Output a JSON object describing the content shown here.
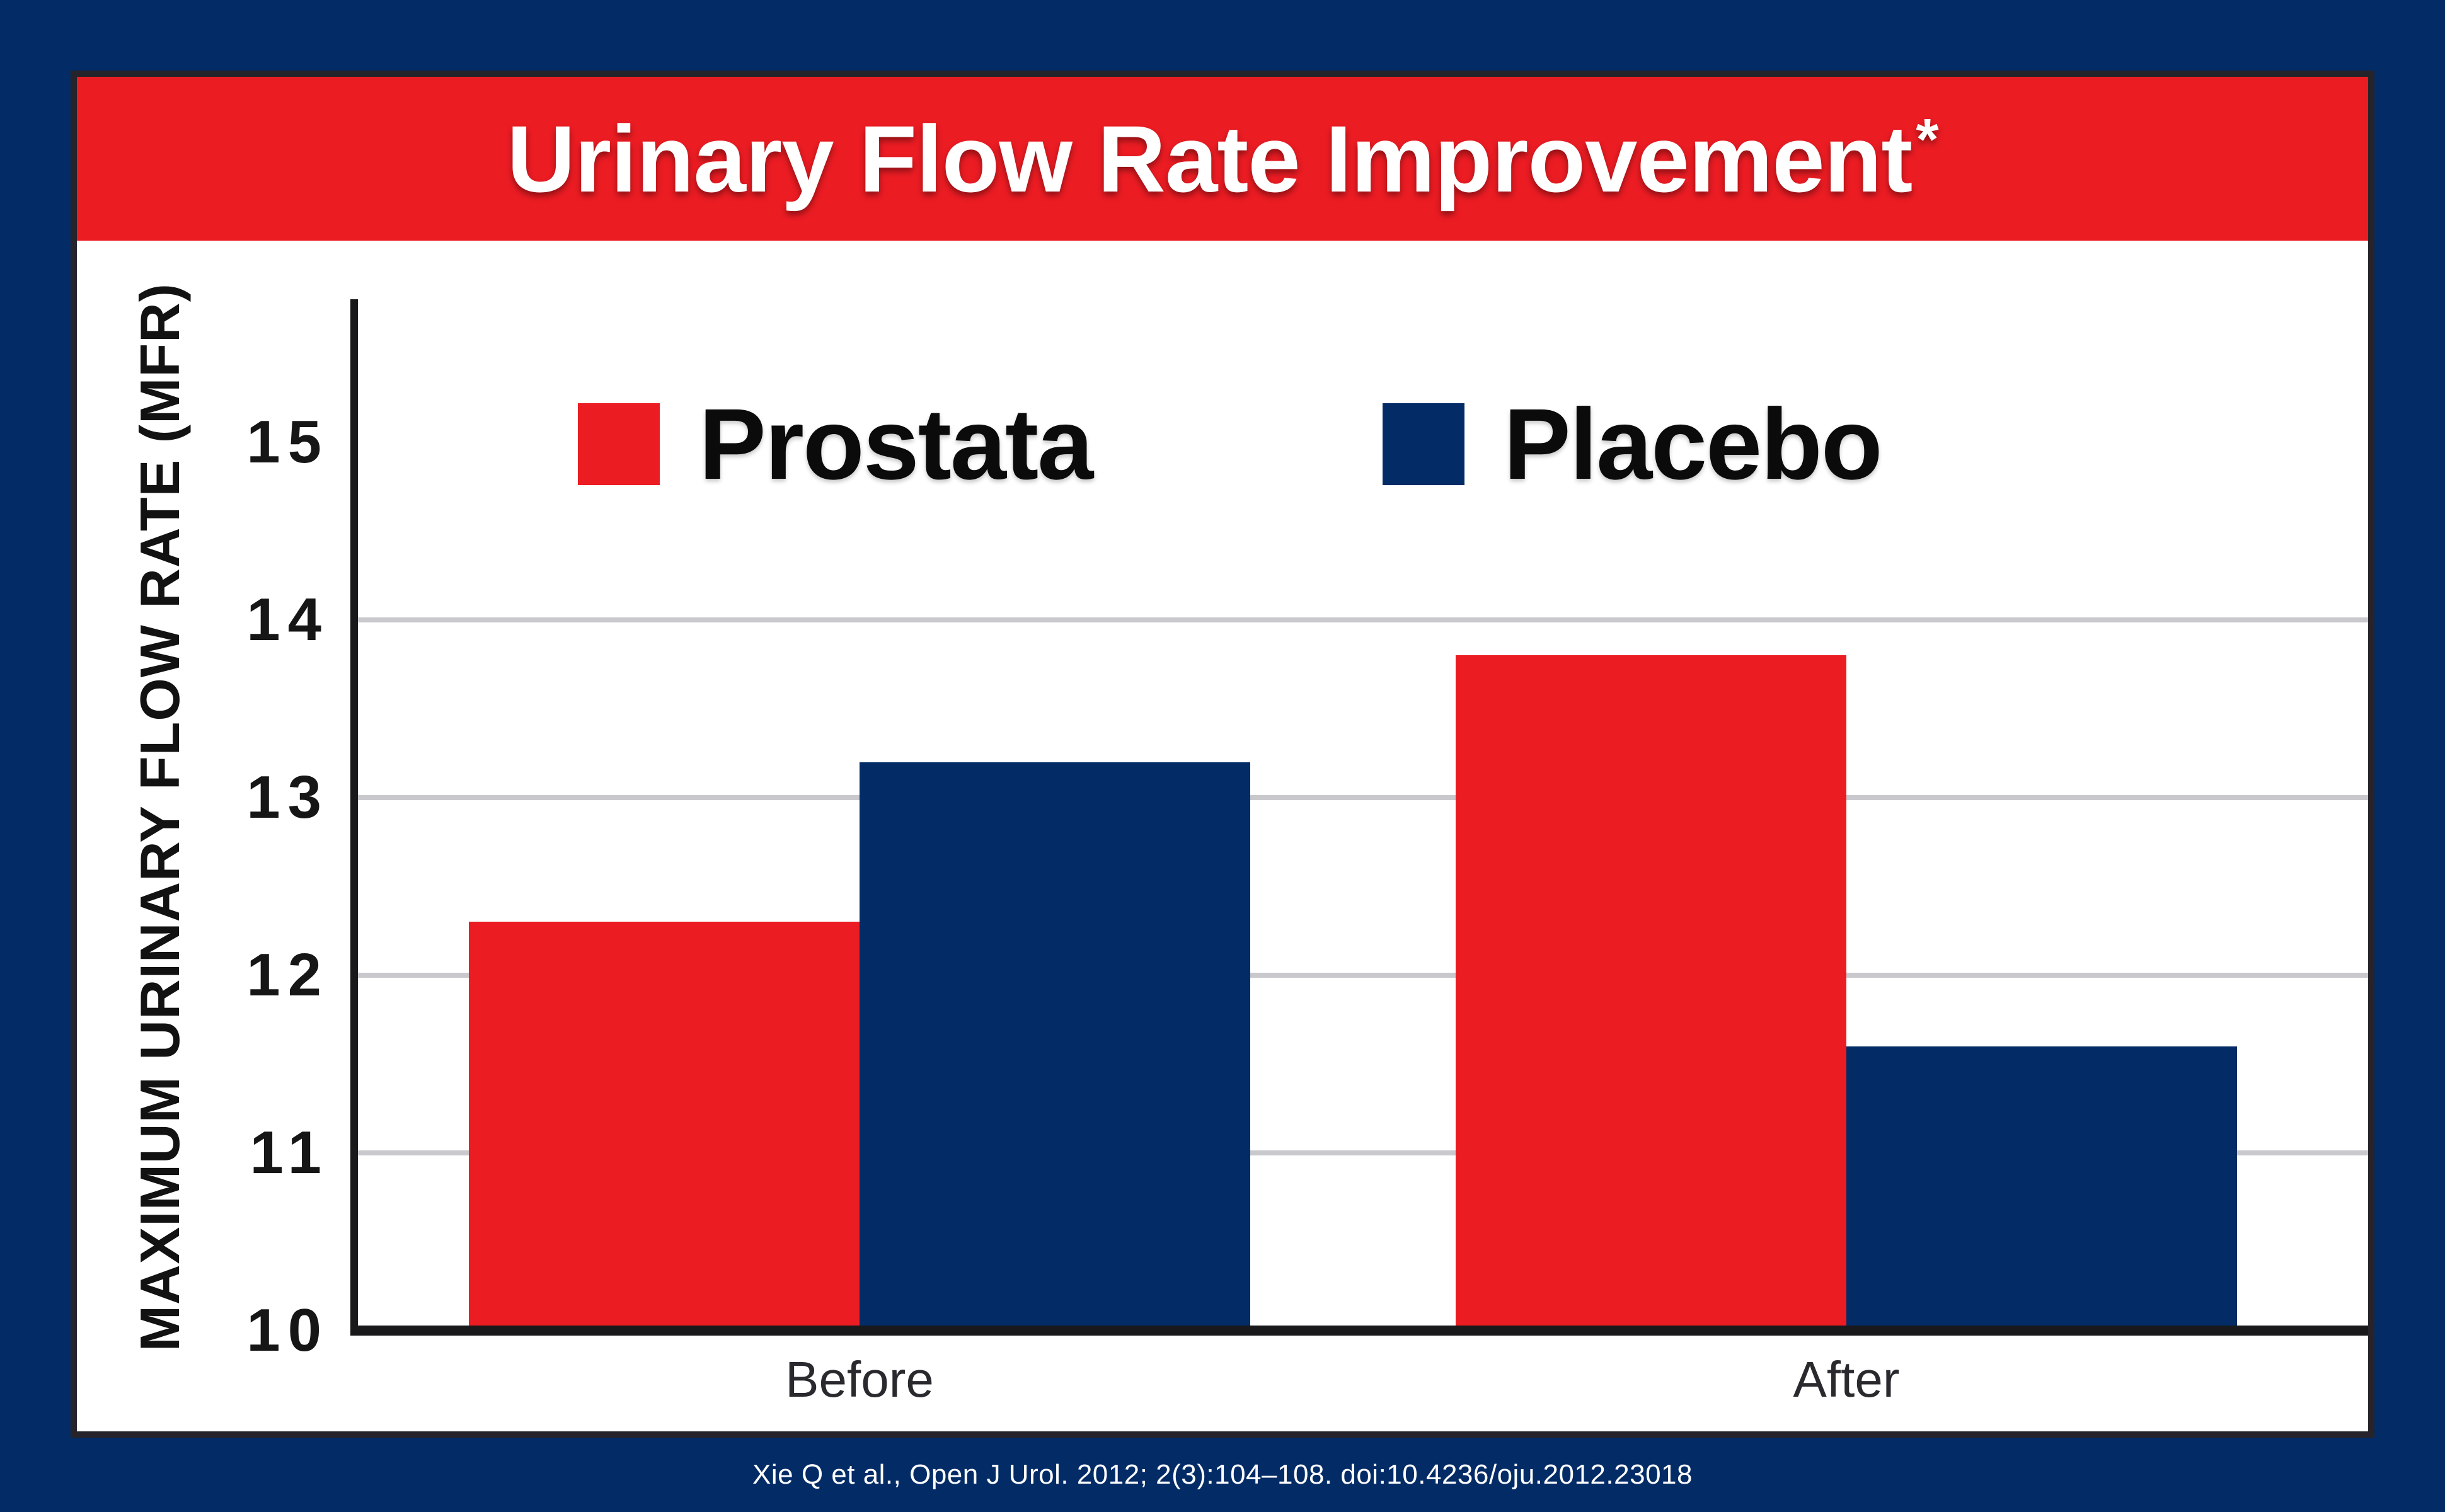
{
  "header": {
    "title": "Urinary Flow Rate Improvement",
    "title_mark": "*",
    "band_color": "#EC1C23",
    "text_color": "#ffffff"
  },
  "legend": [
    {
      "label": "Prostata",
      "color": "#EC1C23"
    },
    {
      "label": "Placebo",
      "color": "#032B66"
    }
  ],
  "chart_data": {
    "type": "bar",
    "title": "Urinary Flow Rate Improvement*",
    "categories": [
      "Before",
      "After"
    ],
    "series": [
      {
        "name": "Prostata",
        "color": "#EC1C23",
        "values": [
          12.3,
          13.8
        ]
      },
      {
        "name": "Placebo",
        "color": "#032B66",
        "values": [
          13.2,
          11.6
        ]
      }
    ],
    "xlabel": "",
    "ylabel": "MAXIMUM URINARY FLOW RATE (MFR)",
    "ylim": [
      10,
      15.8
    ],
    "yticks": [
      15,
      14,
      13,
      12,
      11,
      10
    ],
    "gridlines_at": [
      14,
      13,
      12,
      11
    ],
    "grid": true,
    "gridline_color": "#C9C9CD",
    "axis_color": "#19191C",
    "legend_position": "top-inside"
  },
  "footer": {
    "citation": "Xie Q et al., Open J Urol. 2012; 2(3):104–108. doi:10.4236/oju.2012.23018",
    "band_color": "#032B66",
    "text_color": "#ffffff"
  }
}
